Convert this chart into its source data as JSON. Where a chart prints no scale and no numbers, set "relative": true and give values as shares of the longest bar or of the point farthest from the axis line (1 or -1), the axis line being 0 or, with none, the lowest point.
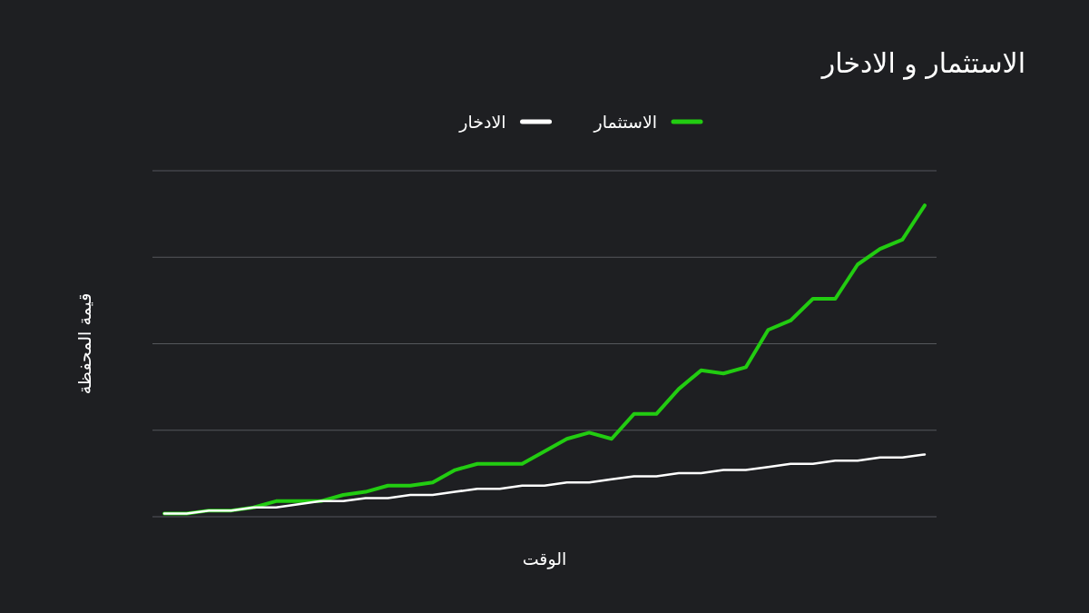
{
  "chart_data": {
    "type": "line",
    "title": "الاستثمار و الادخار",
    "xlabel": "الوقت",
    "ylabel": "قيمة المحفظة",
    "relative": true,
    "grid": "y",
    "legend": "top",
    "line_style": "solid",
    "marker": "none",
    "categories": [
      null,
      null,
      null,
      null,
      null,
      null,
      null,
      null,
      null,
      null,
      null,
      null,
      null,
      null,
      null,
      null,
      null,
      null,
      null,
      null,
      null,
      null,
      null,
      null,
      null,
      null,
      null,
      null,
      null,
      null,
      null,
      null,
      null,
      null,
      null
    ],
    "series": [
      {
        "name": "الاستثمار",
        "color": "#22cc11",
        "values": [
          0.01,
          0.01,
          0.02,
          0.02,
          0.03,
          0.05,
          0.05,
          0.05,
          0.07,
          0.08,
          0.1,
          0.1,
          0.11,
          0.15,
          0.17,
          0.17,
          0.17,
          0.21,
          0.25,
          0.27,
          0.25,
          0.33,
          0.33,
          0.41,
          0.47,
          0.46,
          0.48,
          0.6,
          0.63,
          0.7,
          0.7,
          0.81,
          0.86,
          0.89,
          1.0
        ]
      },
      {
        "name": "الادخار",
        "color": "#ffffff",
        "values": [
          0.01,
          0.01,
          0.02,
          0.02,
          0.03,
          0.03,
          0.04,
          0.05,
          0.05,
          0.06,
          0.06,
          0.07,
          0.07,
          0.08,
          0.09,
          0.09,
          0.1,
          0.1,
          0.11,
          0.11,
          0.12,
          0.13,
          0.13,
          0.14,
          0.14,
          0.15,
          0.15,
          0.16,
          0.17,
          0.17,
          0.18,
          0.18,
          0.19,
          0.19,
          0.2
        ]
      }
    ]
  }
}
